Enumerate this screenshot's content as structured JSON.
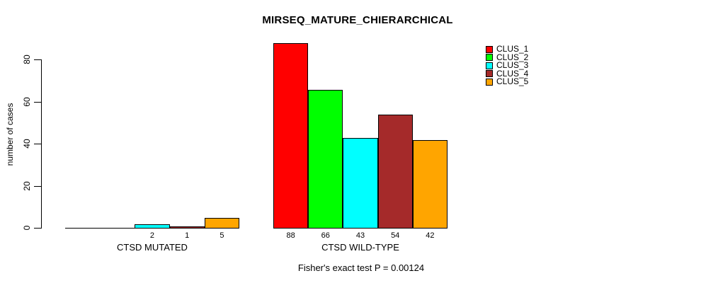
{
  "chart_data": {
    "type": "bar",
    "title": "MIRSEQ_MATURE_CHIERARCHICAL",
    "ylabel": "number of cases",
    "xlabel": "",
    "annotation": "Fisher's exact test P = 0.00124",
    "categories": [
      "CTSD MUTATED",
      "CTSD WILD-TYPE"
    ],
    "series": [
      {
        "name": "CLUS_1",
        "color": "#FF0000",
        "values": [
          0,
          88
        ]
      },
      {
        "name": "CLUS_2",
        "color": "#00FF00",
        "values": [
          0,
          66
        ]
      },
      {
        "name": "CLUS_3",
        "color": "#00FFFF",
        "values": [
          2,
          43
        ]
      },
      {
        "name": "CLUS_4",
        "color": "#A52A2A",
        "values": [
          1,
          54
        ]
      },
      {
        "name": "CLUS_5",
        "color": "#FFA500",
        "values": [
          5,
          42
        ]
      }
    ],
    "bar_value_labels": {
      "CTSD MUTATED": [
        "",
        "",
        "2",
        "1",
        "5"
      ],
      "CTSD WILD-TYPE": [
        "88",
        "66",
        "43",
        "54",
        "42"
      ]
    },
    "yticks": [
      0,
      20,
      40,
      60,
      80
    ],
    "ylim": [
      0,
      88
    ],
    "grid": false,
    "legend_position": "top-right",
    "legend_border": false
  }
}
